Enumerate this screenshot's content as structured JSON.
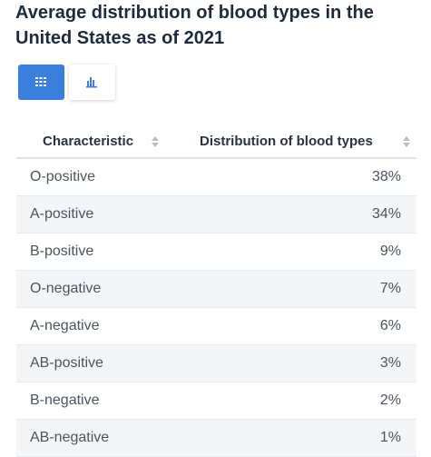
{
  "header": {
    "title": "Average distribution of blood types in the United States as of 2021"
  },
  "table": {
    "columns": [
      "Characteristic",
      "Distribution of blood types"
    ],
    "rows": [
      [
        "O-positive",
        "38%"
      ],
      [
        "A-positive",
        "34%"
      ],
      [
        "B-positive",
        "9%"
      ],
      [
        "O-negative",
        "7%"
      ],
      [
        "A-negative",
        "6%"
      ],
      [
        "AB-positive",
        "3%"
      ],
      [
        "B-negative",
        "2%"
      ],
      [
        "AB-negative",
        "1%"
      ]
    ]
  }
}
